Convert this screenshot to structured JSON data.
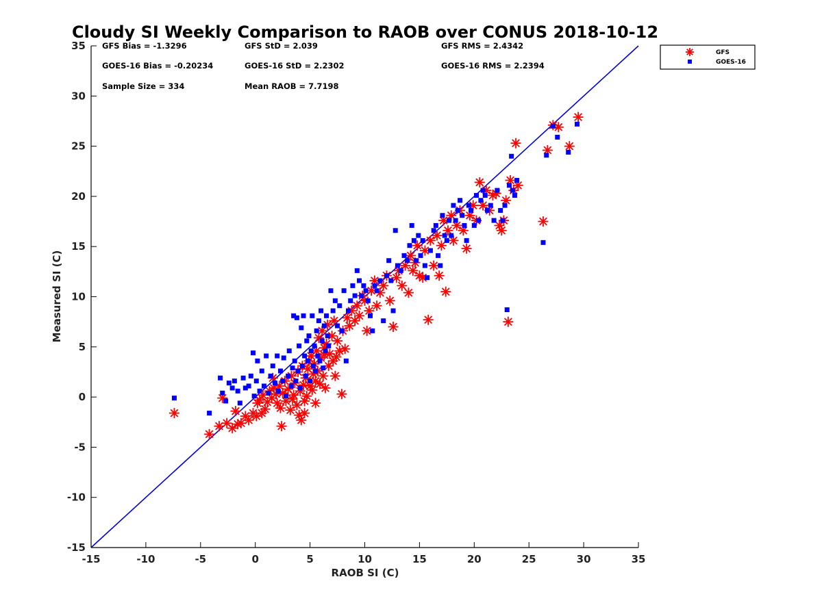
{
  "chart_data": {
    "type": "scatter",
    "title": "Cloudy SI Weekly Comparison to RAOB over CONUS 2018-10-12",
    "xlabel": "RAOB SI (C)",
    "ylabel": "Measured SI (C)",
    "xlim": [
      -15,
      35
    ],
    "ylim": [
      -15,
      35
    ],
    "xticks": [
      "-15",
      "-10",
      "-5",
      "0",
      "5",
      "10",
      "15",
      "20",
      "25",
      "30",
      "35"
    ],
    "yticks": [
      "-15",
      "-10",
      "-5",
      "0",
      "5",
      "10",
      "15",
      "20",
      "25",
      "30",
      "35"
    ],
    "reference_line": {
      "name": "1:1",
      "x": [
        -15,
        35
      ],
      "y": [
        -15,
        35
      ],
      "color": "#0000dd"
    },
    "legend": {
      "placement": "outside-top-right",
      "entries": [
        "GFS",
        "GOES-16"
      ]
    },
    "stats": [
      [
        "GFS Bias = -1.3296",
        "GFS StD = 2.039",
        "GFS RMS = 2.4342"
      ],
      [
        "GOES-16 Bias = -0.20234",
        "GOES-16 StD = 2.2302",
        "GOES-16 RMS = 2.2394"
      ],
      [
        "Sample Size = 334",
        "Mean RAOB = 7.7198"
      ]
    ],
    "series": [
      {
        "name": "GFS",
        "marker": "asterisk",
        "color": "#ff0000",
        "points": [
          [
            -7.4,
            -1.6
          ],
          [
            -4.2,
            -3.7
          ],
          [
            -3.3,
            -2.9
          ],
          [
            -2.6,
            -2.6
          ],
          [
            -2.1,
            -3.1
          ],
          [
            -1.8,
            -1.4
          ],
          [
            -1.3,
            -2.6
          ],
          [
            -0.9,
            -1.9
          ],
          [
            -0.6,
            -2.3
          ],
          [
            -0.2,
            -1.6
          ],
          [
            0.1,
            -1.9
          ],
          [
            0.2,
            -0.6
          ],
          [
            0.4,
            -0.3
          ],
          [
            0.7,
            0.2
          ],
          [
            0.9,
            -1.2
          ],
          [
            1.1,
            -0.5
          ],
          [
            1.3,
            0.6
          ],
          [
            1.5,
            -0.1
          ],
          [
            1.7,
            0.9
          ],
          [
            1.9,
            0.3
          ],
          [
            2.0,
            -0.6
          ],
          [
            2.2,
            1.1
          ],
          [
            2.4,
            -2.9
          ],
          [
            2.5,
            0.4
          ],
          [
            2.7,
            1.6
          ],
          [
            2.8,
            -0.4
          ],
          [
            3.0,
            0.8
          ],
          [
            3.2,
            -1.3
          ],
          [
            3.3,
            2.1
          ],
          [
            3.5,
            0.2
          ],
          [
            3.6,
            1.4
          ],
          [
            3.8,
            -0.8
          ],
          [
            3.9,
            2.5
          ],
          [
            4.0,
            -1.8
          ],
          [
            4.1,
            0.6
          ],
          [
            4.2,
            -2.3
          ],
          [
            4.3,
            3.1
          ],
          [
            4.4,
            1.2
          ],
          [
            4.5,
            -0.4
          ],
          [
            4.6,
            1.9
          ],
          [
            4.7,
            0.1
          ],
          [
            4.8,
            2.8
          ],
          [
            4.9,
            3.6
          ],
          [
            5.0,
            1.1
          ],
          [
            5.1,
            4.1
          ],
          [
            5.2,
            0.7
          ],
          [
            5.3,
            2.3
          ],
          [
            5.4,
            3.3
          ],
          [
            5.5,
            1.6
          ],
          [
            5.6,
            4.6
          ],
          [
            5.7,
            2.6
          ],
          [
            5.8,
            5.9
          ],
          [
            5.9,
            1.3
          ],
          [
            6.0,
            3.9
          ],
          [
            6.1,
            6.6
          ],
          [
            6.2,
            2.1
          ],
          [
            6.3,
            4.9
          ],
          [
            6.4,
            0.9
          ],
          [
            6.5,
            5.3
          ],
          [
            6.6,
            7.2
          ],
          [
            6.7,
            3.1
          ],
          [
            6.8,
            4.3
          ],
          [
            7.0,
            6.1
          ],
          [
            7.1,
            3.6
          ],
          [
            7.2,
            7.6
          ],
          [
            7.3,
            2.1
          ],
          [
            7.5,
            5.6
          ],
          [
            7.7,
            4.6
          ],
          [
            7.9,
            0.3
          ],
          [
            8.0,
            6.6
          ],
          [
            8.2,
            4.8
          ],
          [
            8.4,
            7.9
          ],
          [
            8.6,
            7.1
          ],
          [
            8.8,
            8.6
          ],
          [
            9.1,
            7.6
          ],
          [
            9.3,
            9.1
          ],
          [
            9.5,
            8.1
          ],
          [
            9.8,
            10.1
          ],
          [
            10.0,
            9.6
          ],
          [
            10.2,
            6.6
          ],
          [
            10.4,
            8.6
          ],
          [
            10.6,
            10.6
          ],
          [
            10.9,
            11.6
          ],
          [
            11.1,
            9.1
          ],
          [
            11.4,
            10.4
          ],
          [
            11.7,
            11.1
          ],
          [
            12.0,
            12.1
          ],
          [
            12.3,
            9.6
          ],
          [
            12.6,
            7.0
          ],
          [
            12.9,
            11.9
          ],
          [
            13.1,
            12.6
          ],
          [
            13.4,
            11.1
          ],
          [
            13.7,
            13.1
          ],
          [
            14.0,
            10.4
          ],
          [
            14.2,
            14.1
          ],
          [
            14.4,
            12.6
          ],
          [
            14.6,
            13.4
          ],
          [
            14.8,
            15.1
          ],
          [
            15.0,
            12.1
          ],
          [
            15.3,
            11.9
          ],
          [
            15.5,
            14.6
          ],
          [
            15.8,
            7.7
          ],
          [
            16.0,
            15.6
          ],
          [
            16.3,
            13.1
          ],
          [
            16.6,
            16.1
          ],
          [
            16.8,
            12.1
          ],
          [
            17.0,
            15.1
          ],
          [
            17.2,
            17.6
          ],
          [
            17.4,
            10.5
          ],
          [
            17.6,
            16.6
          ],
          [
            17.9,
            18.1
          ],
          [
            18.1,
            15.6
          ],
          [
            18.4,
            17.1
          ],
          [
            18.7,
            18.6
          ],
          [
            19.0,
            16.6
          ],
          [
            19.3,
            14.8
          ],
          [
            19.6,
            18.1
          ],
          [
            19.9,
            19.1
          ],
          [
            20.2,
            17.6
          ],
          [
            20.5,
            21.4
          ],
          [
            20.8,
            19.1
          ],
          [
            21.1,
            20.6
          ],
          [
            21.4,
            18.6
          ],
          [
            21.7,
            20.1
          ],
          [
            22.0,
            20.3
          ],
          [
            22.3,
            17.1
          ],
          [
            22.5,
            16.6
          ],
          [
            22.7,
            17.6
          ],
          [
            22.9,
            19.6
          ],
          [
            23.1,
            7.5
          ],
          [
            23.3,
            21.6
          ],
          [
            23.6,
            20.6
          ],
          [
            23.8,
            25.3
          ],
          [
            24.0,
            21.1
          ],
          [
            26.3,
            17.5
          ],
          [
            26.7,
            24.6
          ],
          [
            27.2,
            27.1
          ],
          [
            27.7,
            26.9
          ],
          [
            28.7,
            25.0
          ],
          [
            29.5,
            27.9
          ],
          [
            -3.0,
            -0.1
          ],
          [
            -1.6,
            -2.7
          ],
          [
            0.6,
            -1.6
          ],
          [
            1.6,
            1.9
          ],
          [
            2.3,
            -1.1
          ],
          [
            3.4,
            -0.2
          ],
          [
            4.5,
            -1.6
          ],
          [
            5.5,
            -0.6
          ],
          [
            6.3,
            4.2
          ],
          [
            7.4,
            4.0
          ]
        ]
      },
      {
        "name": "GOES-16",
        "marker": "square",
        "color": "#0000ff",
        "points": [
          [
            -7.4,
            -0.1
          ],
          [
            -4.2,
            -1.6
          ],
          [
            -3.2,
            1.9
          ],
          [
            -3.0,
            0.4
          ],
          [
            -2.7,
            -0.4
          ],
          [
            -2.4,
            1.4
          ],
          [
            -2.1,
            0.9
          ],
          [
            -1.9,
            1.6
          ],
          [
            -1.6,
            0.6
          ],
          [
            -1.4,
            -0.6
          ],
          [
            -1.1,
            1.9
          ],
          [
            -0.9,
            0.9
          ],
          [
            -0.6,
            1.1
          ],
          [
            -0.4,
            2.1
          ],
          [
            -0.2,
            4.4
          ],
          [
            -0.1,
            0.1
          ],
          [
            0.1,
            1.6
          ],
          [
            0.2,
            3.6
          ],
          [
            0.4,
            0.6
          ],
          [
            0.6,
            2.6
          ],
          [
            0.8,
            1.1
          ],
          [
            1.0,
            4.1
          ],
          [
            1.2,
            0.4
          ],
          [
            1.4,
            2.1
          ],
          [
            1.6,
            3.1
          ],
          [
            1.8,
            1.4
          ],
          [
            2.0,
            4.1
          ],
          [
            2.1,
            0.6
          ],
          [
            2.3,
            2.6
          ],
          [
            2.5,
            1.6
          ],
          [
            2.6,
            3.9
          ],
          [
            2.8,
            0.1
          ],
          [
            3.0,
            2.1
          ],
          [
            3.1,
            4.6
          ],
          [
            3.3,
            1.1
          ],
          [
            3.4,
            2.9
          ],
          [
            3.5,
            8.1
          ],
          [
            3.6,
            3.6
          ],
          [
            3.7,
            1.6
          ],
          [
            3.8,
            7.9
          ],
          [
            3.9,
            2.6
          ],
          [
            4.0,
            5.1
          ],
          [
            4.1,
            0.9
          ],
          [
            4.2,
            6.9
          ],
          [
            4.3,
            3.1
          ],
          [
            4.4,
            8.1
          ],
          [
            4.5,
            4.1
          ],
          [
            4.6,
            2.1
          ],
          [
            4.7,
            5.6
          ],
          [
            4.8,
            3.6
          ],
          [
            4.9,
            6.1
          ],
          [
            5.0,
            1.6
          ],
          [
            5.1,
            4.6
          ],
          [
            5.2,
            8.1
          ],
          [
            5.3,
            3.1
          ],
          [
            5.4,
            5.1
          ],
          [
            5.5,
            2.6
          ],
          [
            5.6,
            6.6
          ],
          [
            5.7,
            4.1
          ],
          [
            5.8,
            7.6
          ],
          [
            5.9,
            3.6
          ],
          [
            6.0,
            8.6
          ],
          [
            6.1,
            5.6
          ],
          [
            6.2,
            2.9
          ],
          [
            6.3,
            7.1
          ],
          [
            6.4,
            4.6
          ],
          [
            6.5,
            8.1
          ],
          [
            6.6,
            6.1
          ],
          [
            6.7,
            5.1
          ],
          [
            6.9,
            10.6
          ],
          [
            7.1,
            8.6
          ],
          [
            7.3,
            9.6
          ],
          [
            7.5,
            7.1
          ],
          [
            7.7,
            9.1
          ],
          [
            7.9,
            6.6
          ],
          [
            8.1,
            10.6
          ],
          [
            8.3,
            3.6
          ],
          [
            8.5,
            8.6
          ],
          [
            8.7,
            9.6
          ],
          [
            8.9,
            11.1
          ],
          [
            9.1,
            10.1
          ],
          [
            9.3,
            12.6
          ],
          [
            9.5,
            11.6
          ],
          [
            9.7,
            10.1
          ],
          [
            9.9,
            11.1
          ],
          [
            10.1,
            10.6
          ],
          [
            10.3,
            9.6
          ],
          [
            10.5,
            8.1
          ],
          [
            10.7,
            6.6
          ],
          [
            10.9,
            11.1
          ],
          [
            11.1,
            10.6
          ],
          [
            11.4,
            11.6
          ],
          [
            11.7,
            7.6
          ],
          [
            12.0,
            12.1
          ],
          [
            12.2,
            13.6
          ],
          [
            12.4,
            11.6
          ],
          [
            12.6,
            8.6
          ],
          [
            12.8,
            16.6
          ],
          [
            13.0,
            13.1
          ],
          [
            13.3,
            12.6
          ],
          [
            13.6,
            14.1
          ],
          [
            13.9,
            13.6
          ],
          [
            14.1,
            15.1
          ],
          [
            14.3,
            17.1
          ],
          [
            14.5,
            15.6
          ],
          [
            14.7,
            13.6
          ],
          [
            14.9,
            16.1
          ],
          [
            15.1,
            14.1
          ],
          [
            15.3,
            15.6
          ],
          [
            15.5,
            13.1
          ],
          [
            15.7,
            11.9
          ],
          [
            16.0,
            14.6
          ],
          [
            16.3,
            16.6
          ],
          [
            16.5,
            17.1
          ],
          [
            16.7,
            14.1
          ],
          [
            16.9,
            13.1
          ],
          [
            17.1,
            18.1
          ],
          [
            17.3,
            16.1
          ],
          [
            17.5,
            15.6
          ],
          [
            17.7,
            17.6
          ],
          [
            17.9,
            16.1
          ],
          [
            18.1,
            19.1
          ],
          [
            18.3,
            17.6
          ],
          [
            18.5,
            18.6
          ],
          [
            18.7,
            19.6
          ],
          [
            18.9,
            18.1
          ],
          [
            19.1,
            17.1
          ],
          [
            19.3,
            15.6
          ],
          [
            19.5,
            19.1
          ],
          [
            19.7,
            18.6
          ],
          [
            20.0,
            17.1
          ],
          [
            20.2,
            20.1
          ],
          [
            20.4,
            17.6
          ],
          [
            20.6,
            19.6
          ],
          [
            20.8,
            20.6
          ],
          [
            21.0,
            20.1
          ],
          [
            21.2,
            18.6
          ],
          [
            21.5,
            19.1
          ],
          [
            21.8,
            17.6
          ],
          [
            22.1,
            20.6
          ],
          [
            22.4,
            18.6
          ],
          [
            22.6,
            17.6
          ],
          [
            22.8,
            19.1
          ],
          [
            23.0,
            8.7
          ],
          [
            23.2,
            21.1
          ],
          [
            23.4,
            24.0
          ],
          [
            23.5,
            20.6
          ],
          [
            23.7,
            20.1
          ],
          [
            23.9,
            21.6
          ],
          [
            26.3,
            15.4
          ],
          [
            26.6,
            24.1
          ],
          [
            27.2,
            27.0
          ],
          [
            27.6,
            25.9
          ],
          [
            28.6,
            24.4
          ],
          [
            29.4,
            27.2
          ]
        ]
      }
    ]
  }
}
